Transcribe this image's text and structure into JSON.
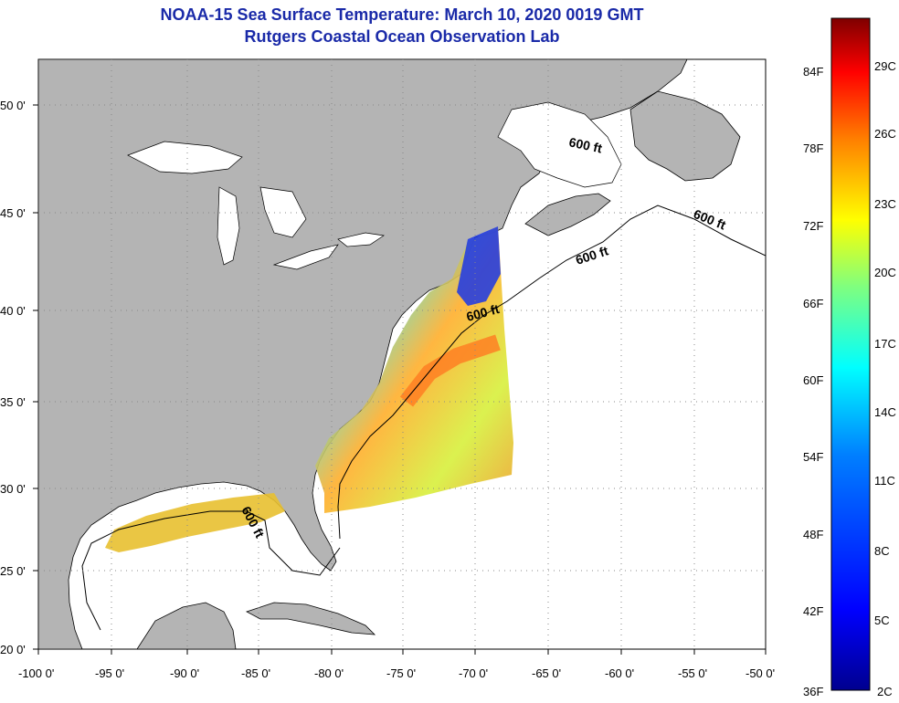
{
  "title": {
    "line1": "NOAA-15 Sea Surface Temperature:  March 10, 2020 0019 GMT",
    "line2": "Rutgers Coastal Ocean Observation Lab"
  },
  "axes": {
    "x_ticks": [
      "-100 0'",
      "-95 0'",
      "-90 0'",
      "-85 0'",
      "-80 0'",
      "-75 0'",
      "-70 0'",
      "-65 0'",
      "-60 0'",
      "-55 0'",
      "-50 0'"
    ],
    "y_ticks": [
      "50 0'",
      "45 0'",
      "40 0'",
      "35 0'",
      "30 0'",
      "25 0'",
      "20 0'"
    ]
  },
  "contour_labels": [
    "600 ft",
    "600 ft",
    "600 ft",
    "600 ft",
    "600 ft"
  ],
  "colorbar": {
    "fahrenheit": [
      "84F",
      "78F",
      "72F",
      "66F",
      "60F",
      "54F",
      "48F",
      "42F",
      "36F"
    ],
    "celsius": [
      "29C",
      "26C",
      "23C",
      "20C",
      "17C",
      "14C",
      "11C",
      "8C",
      "5C",
      "2C"
    ],
    "colors": [
      "#7f0000",
      "#ff0000",
      "#ff7f00",
      "#ffff00",
      "#7fff7f",
      "#00ffff",
      "#007fff",
      "#0000ff",
      "#00008f"
    ]
  },
  "colors": {
    "land": "#b4b4b4",
    "ocean": "#ffffff",
    "grid": "#888888"
  }
}
